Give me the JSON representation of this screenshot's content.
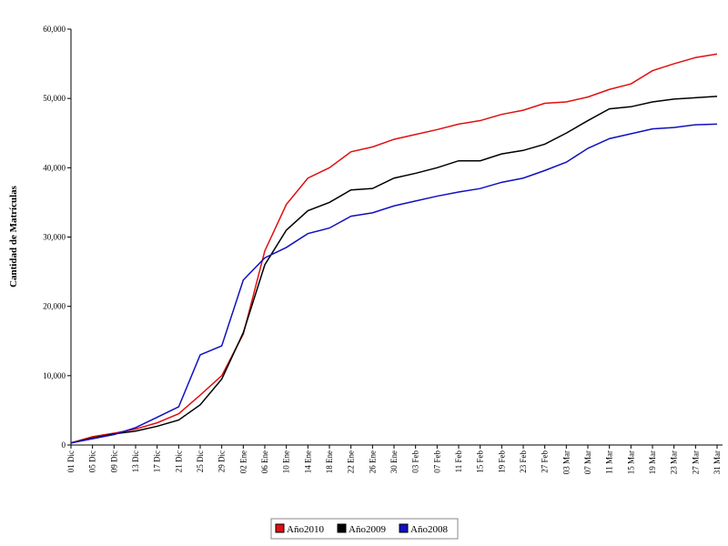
{
  "chart_data": {
    "type": "line",
    "y_label": "Cantidad de Matrículas",
    "categories": [
      "01 Dic",
      "05 Dic",
      "09 Dic",
      "13 Dic",
      "17 Dic",
      "21 Dic",
      "25 Dic",
      "29 Dic",
      "02 Ene",
      "06 Ene",
      "10 Ene",
      "14 Ene",
      "18 Ene",
      "22 Ene",
      "26 Ene",
      "30 Ene",
      "03 Feb",
      "07 Feb",
      "11 Feb",
      "15 Feb",
      "19 Feb",
      "23 Feb",
      "27 Feb",
      "03 Mar",
      "07 Mar",
      "11 Mar",
      "15 Mar",
      "19 Mar",
      "23 Mar",
      "27 Mar",
      "31 Mar"
    ],
    "series": [
      {
        "name": "Año2010",
        "color": "#e01010",
        "values": [
          300,
          1200,
          1700,
          2300,
          3200,
          4500,
          7200,
          10000,
          16000,
          28000,
          34700,
          38500,
          40000,
          42300,
          43000,
          44100,
          44800,
          45500,
          46300,
          46800,
          47700,
          48300,
          49300,
          49500,
          50200,
          51300,
          52100,
          54000,
          55000,
          55900,
          56400
        ]
      },
      {
        "name": "Año2009",
        "color": "#000000",
        "values": [
          300,
          1000,
          1600,
          2000,
          2700,
          3600,
          5800,
          9500,
          16200,
          26000,
          31000,
          33800,
          35000,
          36800,
          37000,
          38500,
          39200,
          40000,
          41000,
          41000,
          42000,
          42500,
          43400,
          45000,
          46800,
          48500,
          48800,
          49500,
          49900,
          50100,
          50300
        ]
      },
      {
        "name": "Año2008",
        "color": "#1010c0",
        "values": [
          300,
          900,
          1500,
          2500,
          4000,
          5500,
          13000,
          14300,
          23800,
          27000,
          28500,
          30500,
          31300,
          33000,
          33500,
          34500,
          35200,
          35900,
          36500,
          37000,
          37900,
          38500,
          39600,
          40800,
          42800,
          44200,
          44900,
          45600,
          45800,
          46200,
          46300
        ]
      }
    ],
    "ylim": [
      0,
      60000
    ],
    "yticks": [
      0,
      {
        "value": 10000,
        "label": "10,000"
      },
      {
        "value": 20000,
        "label": "20,000"
      },
      {
        "value": 30000,
        "label": "30,000"
      },
      {
        "value": 40000,
        "label": "40,000"
      },
      {
        "value": 50000,
        "label": "50,000"
      },
      {
        "value": 60000,
        "label": "60,000"
      }
    ],
    "legend": "bottom"
  }
}
